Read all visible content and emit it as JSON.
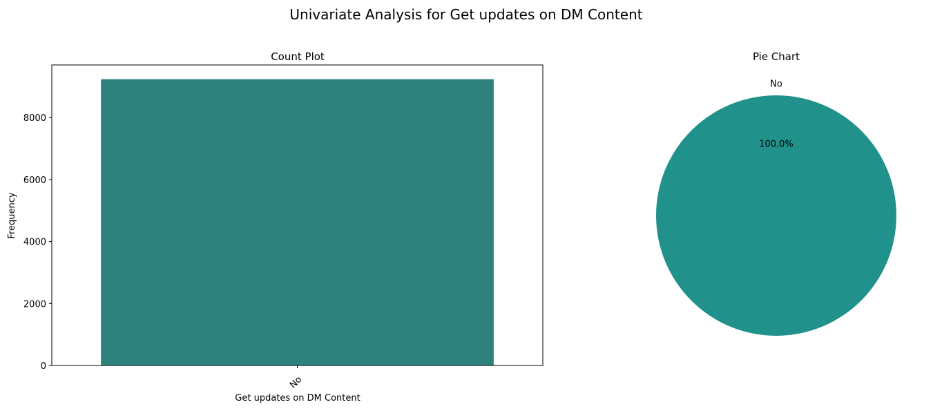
{
  "figure": {
    "suptitle": "Univariate Analysis for Get updates on DM Content"
  },
  "chart_data": [
    {
      "type": "bar",
      "title": "Count Plot",
      "xlabel": "Get updates on DM Content",
      "ylabel": "Frequency",
      "categories": [
        "No"
      ],
      "values": [
        9240
      ],
      "ylim": [
        0,
        9700
      ],
      "yticks": [
        0,
        2000,
        4000,
        6000,
        8000
      ],
      "ytick_labels": [
        "0",
        "2000",
        "4000",
        "6000",
        "8000"
      ],
      "xtick_rotation": 45,
      "bar_color": "#2e827d",
      "grid": false
    },
    {
      "type": "pie",
      "title": "Pie Chart",
      "labels": [
        "No"
      ],
      "values": [
        100.0
      ],
      "pct_labels": [
        "100.0%"
      ],
      "colors": [
        "#21918c"
      ]
    }
  ]
}
